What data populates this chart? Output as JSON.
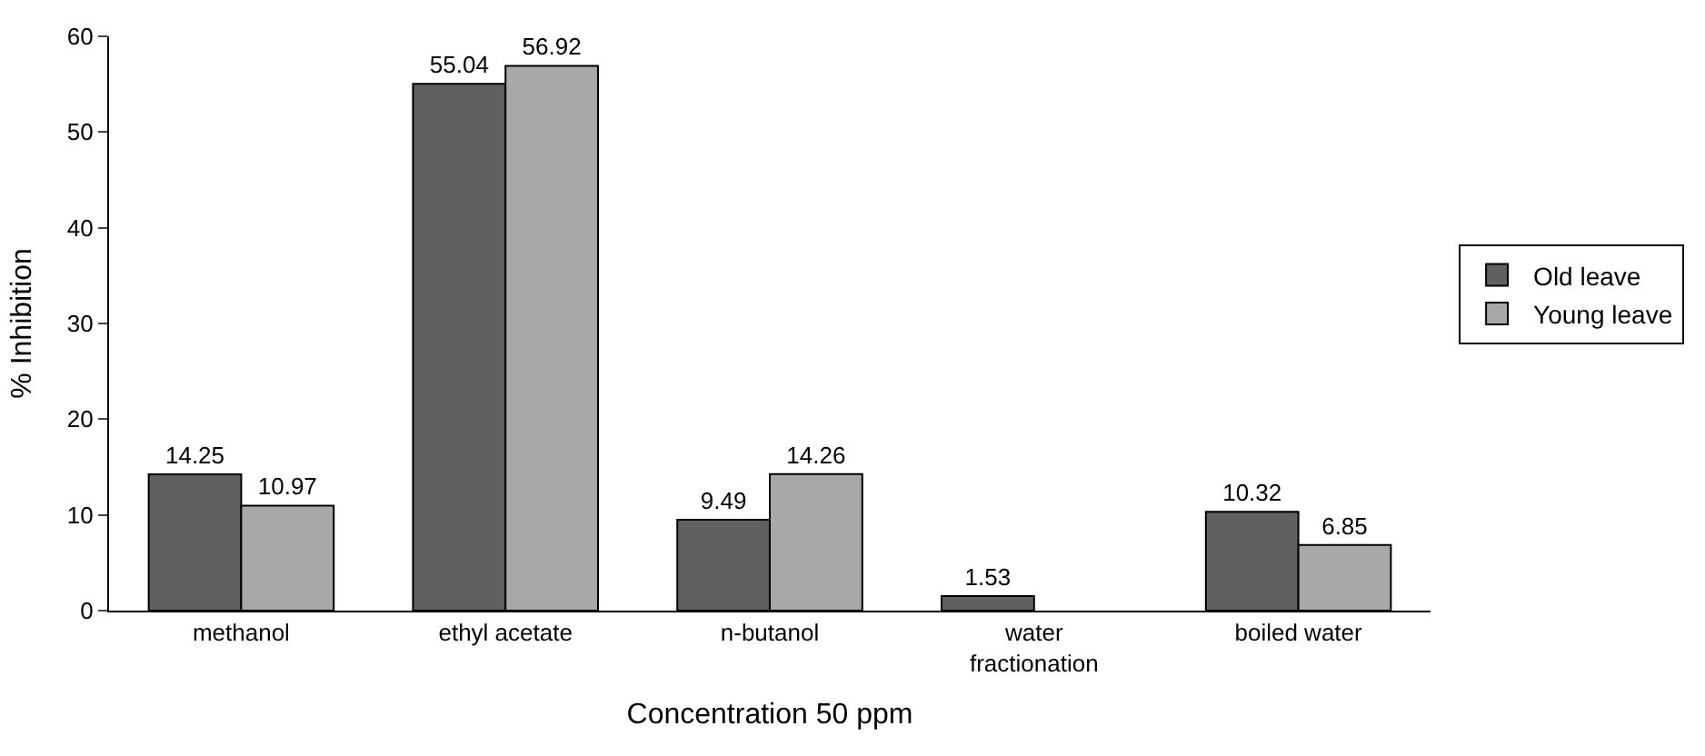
{
  "chart_data": {
    "type": "bar",
    "xlabel": "Concentration 50 ppm",
    "ylabel": "% Inhibition",
    "categories": [
      "methanol",
      "ethyl acetate",
      "n-butanol",
      "water\nfractionation",
      "boiled water"
    ],
    "series": [
      {
        "name": "Old leave",
        "color": "#606060",
        "values": [
          14.25,
          55.04,
          9.49,
          1.53,
          10.32
        ]
      },
      {
        "name": "Young leave",
        "color": "#a8a8a8",
        "values": [
          10.97,
          56.92,
          14.26,
          null,
          6.85
        ]
      }
    ],
    "ylim": [
      0,
      60
    ],
    "yticks": [
      0,
      10,
      20,
      30,
      40,
      50,
      60
    ],
    "grid": false,
    "legend": "right",
    "data_labels": true
  }
}
